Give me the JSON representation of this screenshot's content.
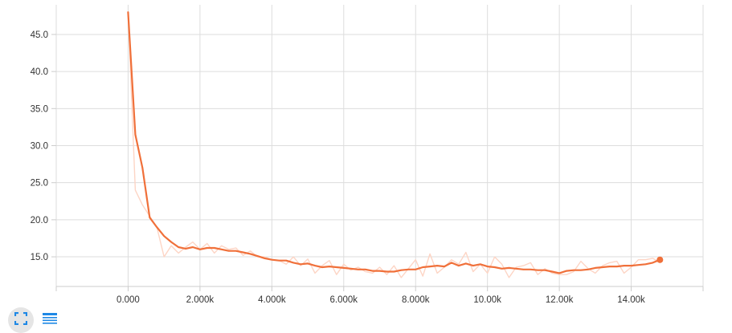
{
  "chart_data": {
    "type": "line",
    "title": "",
    "xlabel": "",
    "ylabel": "",
    "xlim": [
      -2000,
      16000
    ],
    "ylim": [
      11,
      49
    ],
    "x_ticks": [
      0,
      2000,
      4000,
      6000,
      8000,
      10000,
      12000,
      14000
    ],
    "x_tick_labels": [
      "0.000",
      "2.000k",
      "4.000k",
      "6.000k",
      "8.000k",
      "10.00k",
      "12.00k",
      "14.00k"
    ],
    "y_ticks": [
      15,
      20,
      25,
      30,
      35,
      40,
      45
    ],
    "y_tick_labels": [
      "15.0",
      "20.0",
      "25.0",
      "30.0",
      "35.0",
      "40.0",
      "45.0"
    ],
    "grid": true,
    "series": [
      {
        "role": "raw",
        "color": "#fdd5c5",
        "x": [
          0,
          200,
          400,
          600,
          800,
          1000,
          1200,
          1400,
          1600,
          1800,
          2000,
          2200,
          2400,
          2600,
          2800,
          3000,
          3200,
          3400,
          3600,
          3800,
          4000,
          4200,
          4400,
          4600,
          4800,
          5000,
          5200,
          5400,
          5600,
          5800,
          6000,
          6200,
          6400,
          6600,
          6800,
          7000,
          7200,
          7400,
          7600,
          7800,
          8000,
          8200,
          8400,
          8600,
          8800,
          9000,
          9200,
          9400,
          9600,
          9800,
          10000,
          10200,
          10400,
          10600,
          10800,
          11000,
          11200,
          11400,
          11600,
          11800,
          12000,
          12200,
          12400,
          12600,
          12800,
          13000,
          13200,
          13400,
          13600,
          13800,
          14000,
          14200,
          14400,
          14600,
          14800
        ],
        "values": [
          48.0,
          24.0,
          22.0,
          20.5,
          19.0,
          15.0,
          16.5,
          15.5,
          16.3,
          17.0,
          16.0,
          16.8,
          15.5,
          16.5,
          16.0,
          16.2,
          15.2,
          15.8,
          15.0,
          15.0,
          14.6,
          14.5,
          14.0,
          15.0,
          13.8,
          14.7,
          12.8,
          13.8,
          14.5,
          12.6,
          14.0,
          13.2,
          13.6,
          13.0,
          12.8,
          13.6,
          12.6,
          13.8,
          12.2,
          13.4,
          14.6,
          12.4,
          15.4,
          12.8,
          13.6,
          14.6,
          14.0,
          15.6,
          13.0,
          14.0,
          12.8,
          15.0,
          14.0,
          12.2,
          13.6,
          13.8,
          14.2,
          12.6,
          13.4,
          12.8,
          12.6,
          12.6,
          13.0,
          14.4,
          13.4,
          12.8,
          13.8,
          14.2,
          14.4,
          12.8,
          13.6,
          14.6,
          14.6,
          14.8,
          14.2
        ],
        "last_point_marker": false
      },
      {
        "role": "smoothed",
        "color": "#f0703a",
        "x": [
          0,
          200,
          400,
          600,
          800,
          1000,
          1200,
          1400,
          1600,
          1800,
          2000,
          2200,
          2400,
          2600,
          2800,
          3000,
          3200,
          3400,
          3600,
          3800,
          4000,
          4200,
          4400,
          4600,
          4800,
          5000,
          5200,
          5400,
          5600,
          5800,
          6000,
          6200,
          6400,
          6600,
          6800,
          7000,
          7200,
          7400,
          7600,
          7800,
          8000,
          8200,
          8400,
          8600,
          8800,
          9000,
          9200,
          9400,
          9600,
          9800,
          10000,
          10200,
          10400,
          10600,
          10800,
          11000,
          11200,
          11400,
          11600,
          11800,
          12000,
          12200,
          12400,
          12600,
          12800,
          13000,
          13200,
          13400,
          13600,
          13800,
          14000,
          14200,
          14400,
          14600,
          14800
        ],
        "values": [
          48.0,
          31.5,
          27.0,
          20.3,
          19.0,
          17.8,
          17.0,
          16.3,
          16.1,
          16.3,
          16.0,
          16.2,
          16.2,
          16.0,
          15.8,
          15.8,
          15.6,
          15.4,
          15.1,
          14.8,
          14.6,
          14.5,
          14.5,
          14.2,
          14.0,
          14.1,
          13.8,
          13.6,
          13.7,
          13.6,
          13.5,
          13.4,
          13.3,
          13.3,
          13.1,
          13.1,
          13.0,
          13.0,
          13.2,
          13.3,
          13.3,
          13.6,
          13.7,
          13.8,
          13.7,
          14.2,
          13.8,
          14.1,
          13.8,
          14.0,
          13.7,
          13.6,
          13.4,
          13.5,
          13.4,
          13.3,
          13.3,
          13.2,
          13.2,
          13.0,
          12.8,
          13.1,
          13.2,
          13.2,
          13.3,
          13.5,
          13.6,
          13.7,
          13.7,
          13.8,
          13.8,
          13.9,
          14.0,
          14.2,
          14.6
        ],
        "last_point_marker": true
      }
    ]
  },
  "toolbar": {
    "fit_icon": "fit-to-view-icon",
    "data_icon": "data-table-icon"
  }
}
